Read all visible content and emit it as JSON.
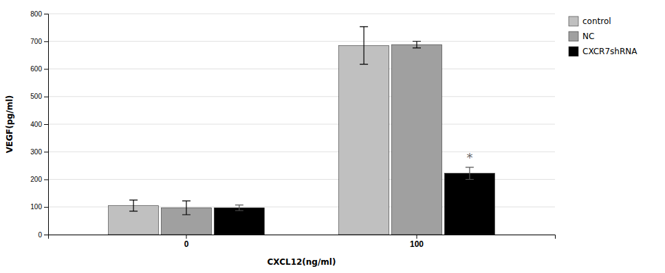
{
  "chart_data": {
    "type": "bar",
    "xlabel": "CXCL12(ng/ml)",
    "ylabel": "VEGF(pg/ml)",
    "categories": [
      "0",
      "100"
    ],
    "series": [
      {
        "name": "control",
        "color": "#c0c0c0",
        "values": [
          105,
          685
        ],
        "errors": [
          20,
          68
        ]
      },
      {
        "name": "NC",
        "color": "#a0a0a0",
        "values": [
          97,
          688
        ],
        "errors": [
          25,
          12
        ]
      },
      {
        "name": "CXCR7shRNA",
        "color": "#000000",
        "values": [
          97,
          222
        ],
        "errors": [
          10,
          22
        ]
      }
    ],
    "ylim": [
      0,
      800
    ],
    "yticks": [
      0,
      100,
      200,
      300,
      400,
      500,
      600,
      700,
      800
    ],
    "grid": true,
    "legend": "upper right",
    "annotations": [
      {
        "text": "*",
        "category": "100",
        "series": "CXCR7shRNA"
      }
    ]
  }
}
